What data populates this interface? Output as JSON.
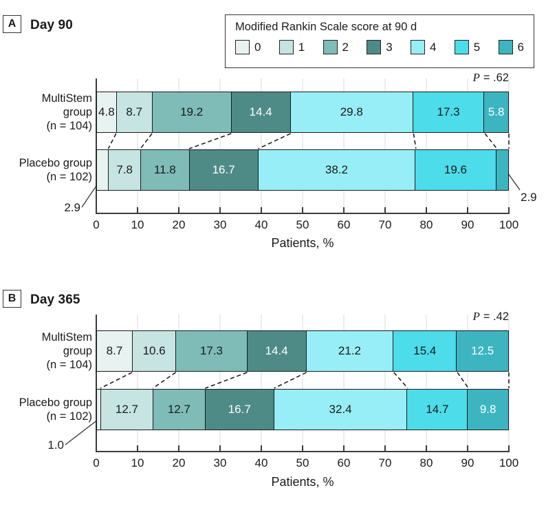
{
  "chart_data": [
    {
      "type": "stacked_bar_horizontal",
      "panel_letter": "A",
      "title": "Day 90",
      "legend": {
        "title": "Modified Rankin Scale score at 90 d",
        "entries": [
          "0",
          "1",
          "2",
          "3",
          "4",
          "5",
          "6"
        ]
      },
      "p_label": "P",
      "p_rest": "= .62",
      "xlabel": "Patients, %",
      "xlim": [
        0,
        100
      ],
      "x_ticks": [
        0,
        10,
        20,
        30,
        40,
        50,
        60,
        70,
        80,
        90,
        100
      ],
      "rows": [
        {
          "label_lines": [
            "MultiStem",
            "group",
            "(n = 104)"
          ],
          "values": [
            4.8,
            8.7,
            19.2,
            14.4,
            29.8,
            17.3,
            5.8
          ],
          "hide_value_labels": [],
          "callouts": []
        },
        {
          "label_lines": [
            "Placebo group",
            "(n = 102)"
          ],
          "values": [
            2.9,
            7.8,
            11.8,
            16.7,
            38.2,
            19.6,
            2.9
          ],
          "hide_value_labels": [
            0,
            6
          ],
          "callouts": [
            {
              "segment": 0,
              "text": "2.9",
              "side": "left"
            },
            {
              "segment": 6,
              "text": "2.9",
              "side": "right"
            }
          ]
        }
      ]
    },
    {
      "type": "stacked_bar_horizontal",
      "panel_letter": "B",
      "title": "Day 365",
      "p_label": "P",
      "p_rest": "= .42",
      "xlabel": "Patients, %",
      "xlim": [
        0,
        100
      ],
      "x_ticks": [
        0,
        10,
        20,
        30,
        40,
        50,
        60,
        70,
        80,
        90,
        100
      ],
      "rows": [
        {
          "label_lines": [
            "MultiStem",
            "group",
            "(n = 104)"
          ],
          "values": [
            8.7,
            10.6,
            17.3,
            14.4,
            21.2,
            15.4,
            12.5
          ],
          "hide_value_labels": [],
          "callouts": []
        },
        {
          "label_lines": [
            "Placebo group",
            "(n = 102)"
          ],
          "values": [
            1.0,
            12.7,
            12.7,
            16.7,
            32.4,
            14.7,
            9.8
          ],
          "hide_value_labels": [
            0
          ],
          "callouts": [
            {
              "segment": 0,
              "text": "1.0",
              "side": "left"
            }
          ]
        }
      ]
    }
  ],
  "colors": {
    "scores": [
      "#e8f2f1",
      "#c6e4e1",
      "#7fbcb8",
      "#4e8b87",
      "#97eef6",
      "#4cdcea",
      "#3db5c1"
    ],
    "white_label_scores": [
      3,
      6
    ],
    "grid": "#d9d9d9",
    "axis": "#3a3a3a",
    "segment_border": "#1a1a1a",
    "dash_line": "#111111",
    "callout_line": "#333333",
    "text": "#1a1a1a",
    "value_text_light": "#ffffff"
  }
}
